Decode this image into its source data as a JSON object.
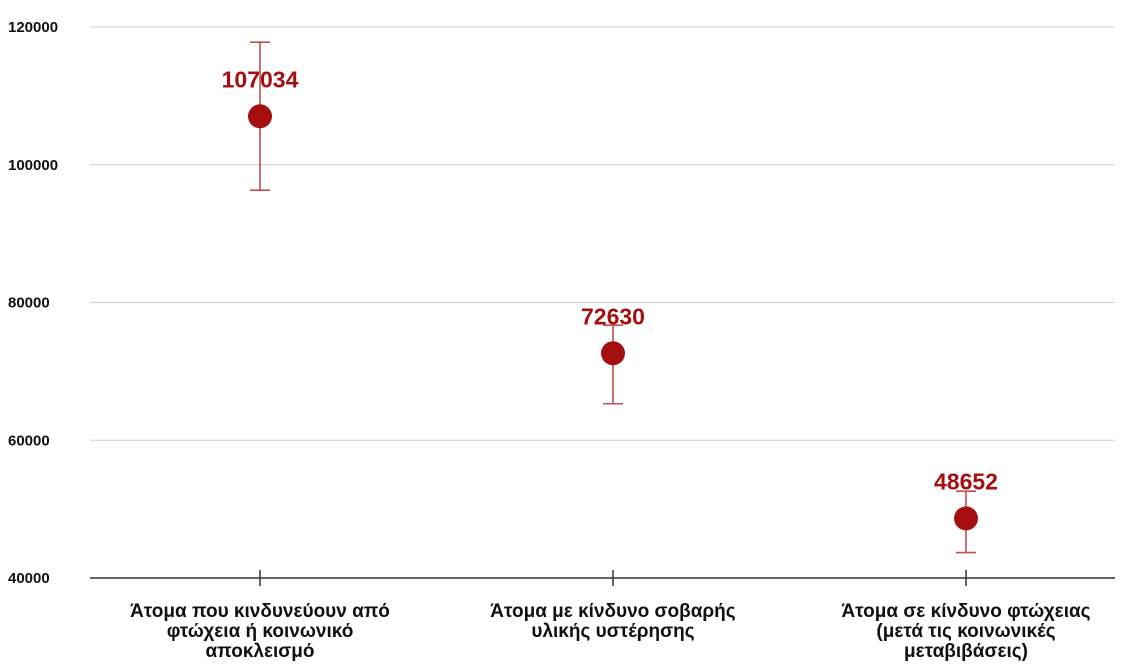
{
  "chart_data": {
    "type": "scatter",
    "title": "",
    "xlabel": "",
    "ylabel": "",
    "ylim": [
      40000,
      120000
    ],
    "yticks": [
      40000,
      60000,
      80000,
      100000,
      120000
    ],
    "ytick_labels": [
      "40000",
      "60000",
      "80000",
      "100000",
      "120000"
    ],
    "grid": true,
    "legend": "none",
    "point_color": "#a50f0f",
    "error_bar_color": "#c0504d",
    "label_color": "#a50f0f",
    "categories": [
      [
        "Άτομα που κινδυνεύουν από",
        "φτώχεια ή κοινωνικό",
        "αποκλεισμό"
      ],
      [
        "Άτομα με κίνδυνο σοβαρής",
        "υλικής υστέρησης"
      ],
      [
        "Άτομα σε κίνδυνο φτώχειας",
        "(μετά τις κοινωνικές",
        "μεταβιβάσεις)"
      ]
    ],
    "values": [
      107034,
      72630,
      48652
    ],
    "data_labels": [
      "107034",
      "72630",
      "48652"
    ],
    "error_low": [
      96300,
      65300,
      43700
    ],
    "error_high": [
      117800,
      76700,
      52600
    ]
  }
}
